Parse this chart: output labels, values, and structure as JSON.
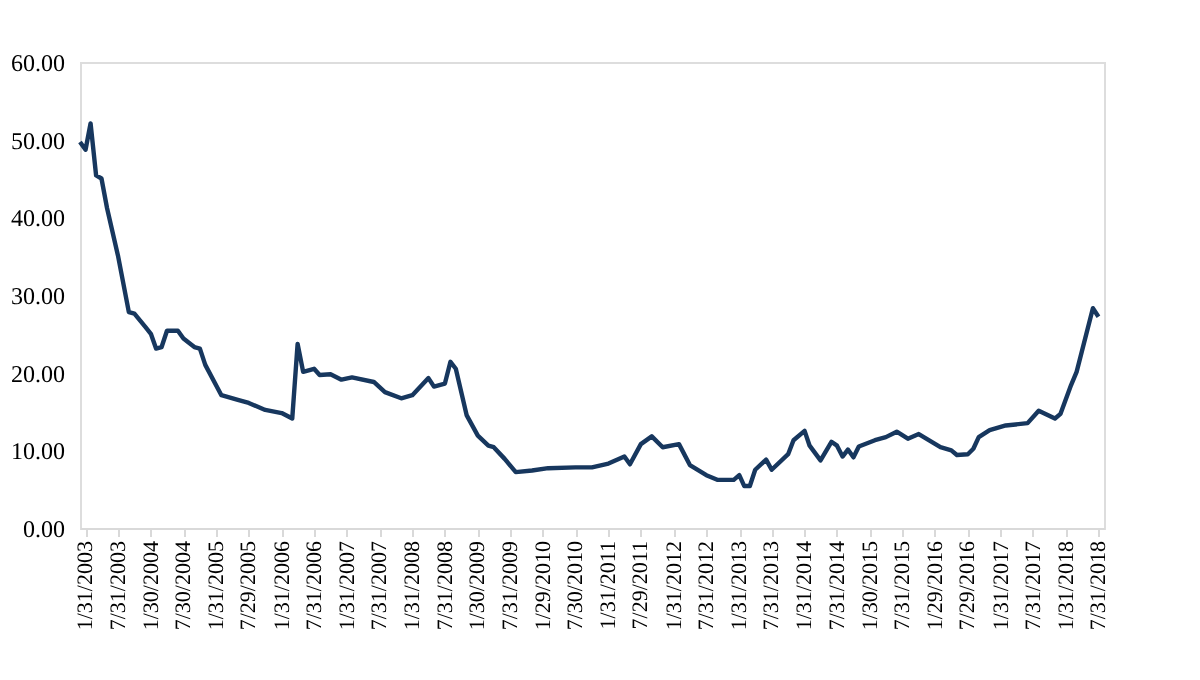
{
  "chart_data": {
    "type": "line",
    "x": [
      "2003-01",
      "2003-02",
      "2003-03",
      "2003-04",
      "2003-05",
      "2003-06",
      "2003-08",
      "2003-10",
      "2003-11",
      "2004-01",
      "2004-02",
      "2004-03",
      "2004-04",
      "2004-05",
      "2004-07",
      "2004-08",
      "2004-10",
      "2004-11",
      "2004-12",
      "2005-03",
      "2005-06",
      "2005-08",
      "2005-11",
      "2006-02",
      "2006-04",
      "2006-05",
      "2006-06",
      "2006-08",
      "2006-09",
      "2006-11",
      "2007-01",
      "2007-03",
      "2007-07",
      "2007-09",
      "2007-12",
      "2008-02",
      "2008-05",
      "2008-06",
      "2008-08",
      "2008-09",
      "2008-10",
      "2008-12",
      "2009-02",
      "2009-04",
      "2009-05",
      "2009-07",
      "2009-09",
      "2009-12",
      "2010-03",
      "2010-08",
      "2010-11",
      "2011-02",
      "2011-05",
      "2011-06",
      "2011-08",
      "2011-10",
      "2011-12",
      "2012-03",
      "2012-05",
      "2012-08",
      "2012-10",
      "2013-01",
      "2013-02",
      "2013-03",
      "2013-04",
      "2013-05",
      "2013-07",
      "2013-08",
      "2013-11",
      "2013-12",
      "2014-02",
      "2014-03",
      "2014-05",
      "2014-07",
      "2014-08",
      "2014-09",
      "2014-10",
      "2014-11",
      "2014-12",
      "2015-03",
      "2015-05",
      "2015-07",
      "2015-09",
      "2015-11",
      "2016-03",
      "2016-05",
      "2016-06",
      "2016-08",
      "2016-09",
      "2016-10",
      "2016-12",
      "2017-03",
      "2017-07",
      "2017-09",
      "2017-12",
      "2018-01",
      "2018-03",
      "2018-04",
      "2018-07",
      "2018-08"
    ],
    "series": [
      {
        "color": "#17375e",
        "values": [
          49.7,
          48.7,
          52.1,
          45.4,
          45.0,
          41.2,
          35.1,
          27.8,
          27.6,
          25.9,
          25.0,
          23.1,
          23.3,
          25.4,
          25.4,
          24.4,
          23.3,
          23.1,
          21.0,
          17.1,
          16.5,
          16.1,
          15.2,
          14.8,
          14.1,
          23.7,
          20.1,
          20.5,
          19.7,
          19.8,
          19.1,
          19.4,
          18.8,
          17.5,
          16.7,
          17.1,
          19.3,
          18.2,
          18.6,
          21.4,
          20.5,
          14.5,
          11.9,
          10.6,
          10.4,
          8.9,
          7.2,
          7.4,
          7.7,
          7.8,
          7.8,
          8.3,
          9.2,
          8.2,
          10.8,
          11.8,
          10.4,
          10.8,
          8.1,
          6.8,
          6.2,
          6.2,
          6.8,
          5.4,
          5.4,
          7.5,
          8.8,
          7.5,
          9.5,
          11.3,
          12.5,
          10.6,
          8.7,
          11.1,
          10.6,
          9.2,
          10.1,
          9.1,
          10.5,
          11.3,
          11.7,
          12.4,
          11.5,
          12.1,
          10.4,
          10.0,
          9.4,
          9.5,
          10.2,
          11.7,
          12.6,
          13.2,
          13.5,
          15.1,
          14.1,
          14.7,
          18.4,
          20.1,
          28.3,
          27.2
        ]
      }
    ],
    "xlim": [
      "2003-01",
      "2018-09"
    ],
    "xticks": [
      {
        "value": "2003-01-31",
        "label": "1/31/2003"
      },
      {
        "value": "2003-07-31",
        "label": "7/31/2003"
      },
      {
        "value": "2004-01-30",
        "label": "1/30/2004"
      },
      {
        "value": "2004-07-30",
        "label": "7/30/2004"
      },
      {
        "value": "2005-01-31",
        "label": "1/31/2005"
      },
      {
        "value": "2005-07-29",
        "label": "7/29/2005"
      },
      {
        "value": "2006-01-31",
        "label": "1/31/2006"
      },
      {
        "value": "2006-07-31",
        "label": "7/31/2006"
      },
      {
        "value": "2007-01-31",
        "label": "1/31/2007"
      },
      {
        "value": "2007-07-31",
        "label": "7/31/2007"
      },
      {
        "value": "2008-01-31",
        "label": "1/31/2008"
      },
      {
        "value": "2008-07-31",
        "label": "7/31/2008"
      },
      {
        "value": "2009-01-30",
        "label": "1/30/2009"
      },
      {
        "value": "2009-07-31",
        "label": "7/31/2009"
      },
      {
        "value": "2010-01-29",
        "label": "1/29/2010"
      },
      {
        "value": "2010-07-30",
        "label": "7/30/2010"
      },
      {
        "value": "2011-01-31",
        "label": "1/31/2011"
      },
      {
        "value": "2011-07-29",
        "label": "7/29/2011"
      },
      {
        "value": "2012-01-31",
        "label": "1/31/2012"
      },
      {
        "value": "2012-07-31",
        "label": "7/31/2012"
      },
      {
        "value": "2013-01-31",
        "label": "1/31/2013"
      },
      {
        "value": "2013-07-31",
        "label": "7/31/2013"
      },
      {
        "value": "2014-01-31",
        "label": "1/31/2014"
      },
      {
        "value": "2014-07-31",
        "label": "7/31/2014"
      },
      {
        "value": "2015-01-30",
        "label": "1/30/2015"
      },
      {
        "value": "2015-07-31",
        "label": "7/31/2015"
      },
      {
        "value": "2016-01-29",
        "label": "1/29/2016"
      },
      {
        "value": "2016-07-29",
        "label": "7/29/2016"
      },
      {
        "value": "2017-01-31",
        "label": "1/31/2017"
      },
      {
        "value": "2017-07-31",
        "label": "7/31/2017"
      },
      {
        "value": "2018-01-31",
        "label": "1/31/2018"
      },
      {
        "value": "2018-07-31",
        "label": "7/31/2018"
      }
    ],
    "ylim": [
      0,
      60
    ],
    "yticks": [
      {
        "value": 0,
        "label": "0.00"
      },
      {
        "value": 10,
        "label": "10.00"
      },
      {
        "value": 20,
        "label": "20.00"
      },
      {
        "value": 30,
        "label": "30.00"
      },
      {
        "value": 40,
        "label": "40.00"
      },
      {
        "value": 50,
        "label": "50.00"
      },
      {
        "value": 60,
        "label": "60.00"
      }
    ],
    "grid": false,
    "legend": false,
    "line_style": "solid",
    "marker": "none"
  }
}
